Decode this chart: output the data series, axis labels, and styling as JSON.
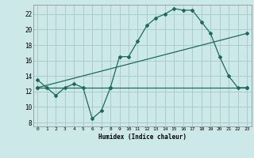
{
  "xlabel": "Humidex (Indice chaleur)",
  "background_color": "#cde8e8",
  "grid_color": "#aacccc",
  "line_color": "#1a6b5a",
  "xlim": [
    -0.5,
    23.5
  ],
  "ylim": [
    7.5,
    23.2
  ],
  "xticks": [
    0,
    1,
    2,
    3,
    4,
    5,
    6,
    7,
    8,
    9,
    10,
    11,
    12,
    13,
    14,
    15,
    16,
    17,
    18,
    19,
    20,
    21,
    22,
    23
  ],
  "yticks": [
    8,
    10,
    12,
    14,
    16,
    18,
    20,
    22
  ],
  "line1_x": [
    0,
    1,
    2,
    3,
    4,
    5,
    6,
    7,
    8,
    9,
    10,
    11,
    12,
    13,
    14,
    15,
    16,
    17,
    18,
    19,
    20,
    21,
    22,
    23
  ],
  "line1_y": [
    13.5,
    12.5,
    11.5,
    12.5,
    13.0,
    12.5,
    8.5,
    9.5,
    12.5,
    16.5,
    16.5,
    18.5,
    20.5,
    21.5,
    22.0,
    22.7,
    22.5,
    22.5,
    21.0,
    19.5,
    16.5,
    14.0,
    12.5,
    12.5
  ],
  "line2_x": [
    0,
    8,
    23
  ],
  "line2_y": [
    12.5,
    12.5,
    12.5
  ],
  "line3_x": [
    0,
    23
  ],
  "line3_y": [
    12.5,
    19.5
  ]
}
